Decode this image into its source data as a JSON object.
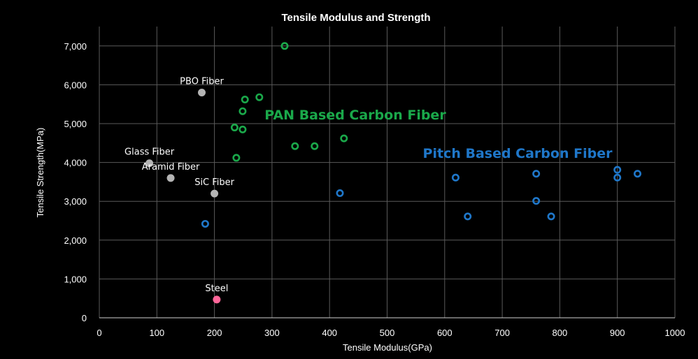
{
  "chart_data": {
    "type": "scatter",
    "title": "Tensile Modulus and Strength",
    "xlabel": "Tensile Modulus(GPa)",
    "ylabel": "Tensile Strength(MPa)",
    "xlim": [
      0,
      1000
    ],
    "ylim": [
      0,
      7500
    ],
    "x_ticks": [
      0,
      100,
      200,
      300,
      400,
      500,
      600,
      700,
      800,
      900,
      1000
    ],
    "x_tick_labels": [
      "0",
      "100",
      "200",
      "300",
      "400",
      "500",
      "600",
      "700",
      "800",
      "900",
      "1000"
    ],
    "y_ticks": [
      0,
      1000,
      2000,
      3000,
      4000,
      5000,
      6000,
      7000
    ],
    "y_tick_labels": [
      "0",
      "1,000",
      "2,000",
      "3,000",
      "4,000",
      "5,000",
      "6,000",
      "7,000"
    ],
    "grid": true,
    "background": "#000000",
    "grid_color": "#5a5a5a",
    "series": [
      {
        "marker": "ring",
        "color": "#1aa84a",
        "points": [
          {
            "x": 322,
            "y": 7000
          },
          {
            "x": 278,
            "y": 5680
          },
          {
            "x": 253,
            "y": 5620
          },
          {
            "x": 249,
            "y": 5320
          },
          {
            "x": 235,
            "y": 4900
          },
          {
            "x": 249,
            "y": 4850
          },
          {
            "x": 238,
            "y": 4120
          },
          {
            "x": 340,
            "y": 4420
          },
          {
            "x": 374,
            "y": 4420
          },
          {
            "x": 425,
            "y": 4620
          }
        ]
      },
      {
        "marker": "ring",
        "color": "#1f77c9",
        "points": [
          {
            "x": 184,
            "y": 2420
          },
          {
            "x": 418,
            "y": 3210
          },
          {
            "x": 619,
            "y": 3610
          },
          {
            "x": 640,
            "y": 2610
          },
          {
            "x": 759,
            "y": 3710
          },
          {
            "x": 759,
            "y": 3010
          },
          {
            "x": 785,
            "y": 2610
          },
          {
            "x": 900,
            "y": 3810
          },
          {
            "x": 900,
            "y": 3610
          },
          {
            "x": 935,
            "y": 3710
          }
        ]
      },
      {
        "marker": "dot",
        "color": "#b4b4b4",
        "points": [
          {
            "x": 178,
            "y": 5800,
            "label": "PBO Fiber"
          },
          {
            "x": 87,
            "y": 3980,
            "label": "Glass Fiber"
          },
          {
            "x": 124,
            "y": 3600,
            "label": "Aramid Fiber"
          },
          {
            "x": 200,
            "y": 3200,
            "label": "SiC Fiber"
          }
        ]
      },
      {
        "marker": "dot",
        "color": "#ff6699",
        "points": [
          {
            "x": 204,
            "y": 470,
            "label": "Steel"
          }
        ]
      }
    ],
    "group_labels": [
      {
        "text": "PAN Based Carbon Fiber",
        "color": "#1aa84a"
      },
      {
        "text": "Pitch Based Carbon Fiber",
        "color": "#1f77c9"
      }
    ]
  }
}
